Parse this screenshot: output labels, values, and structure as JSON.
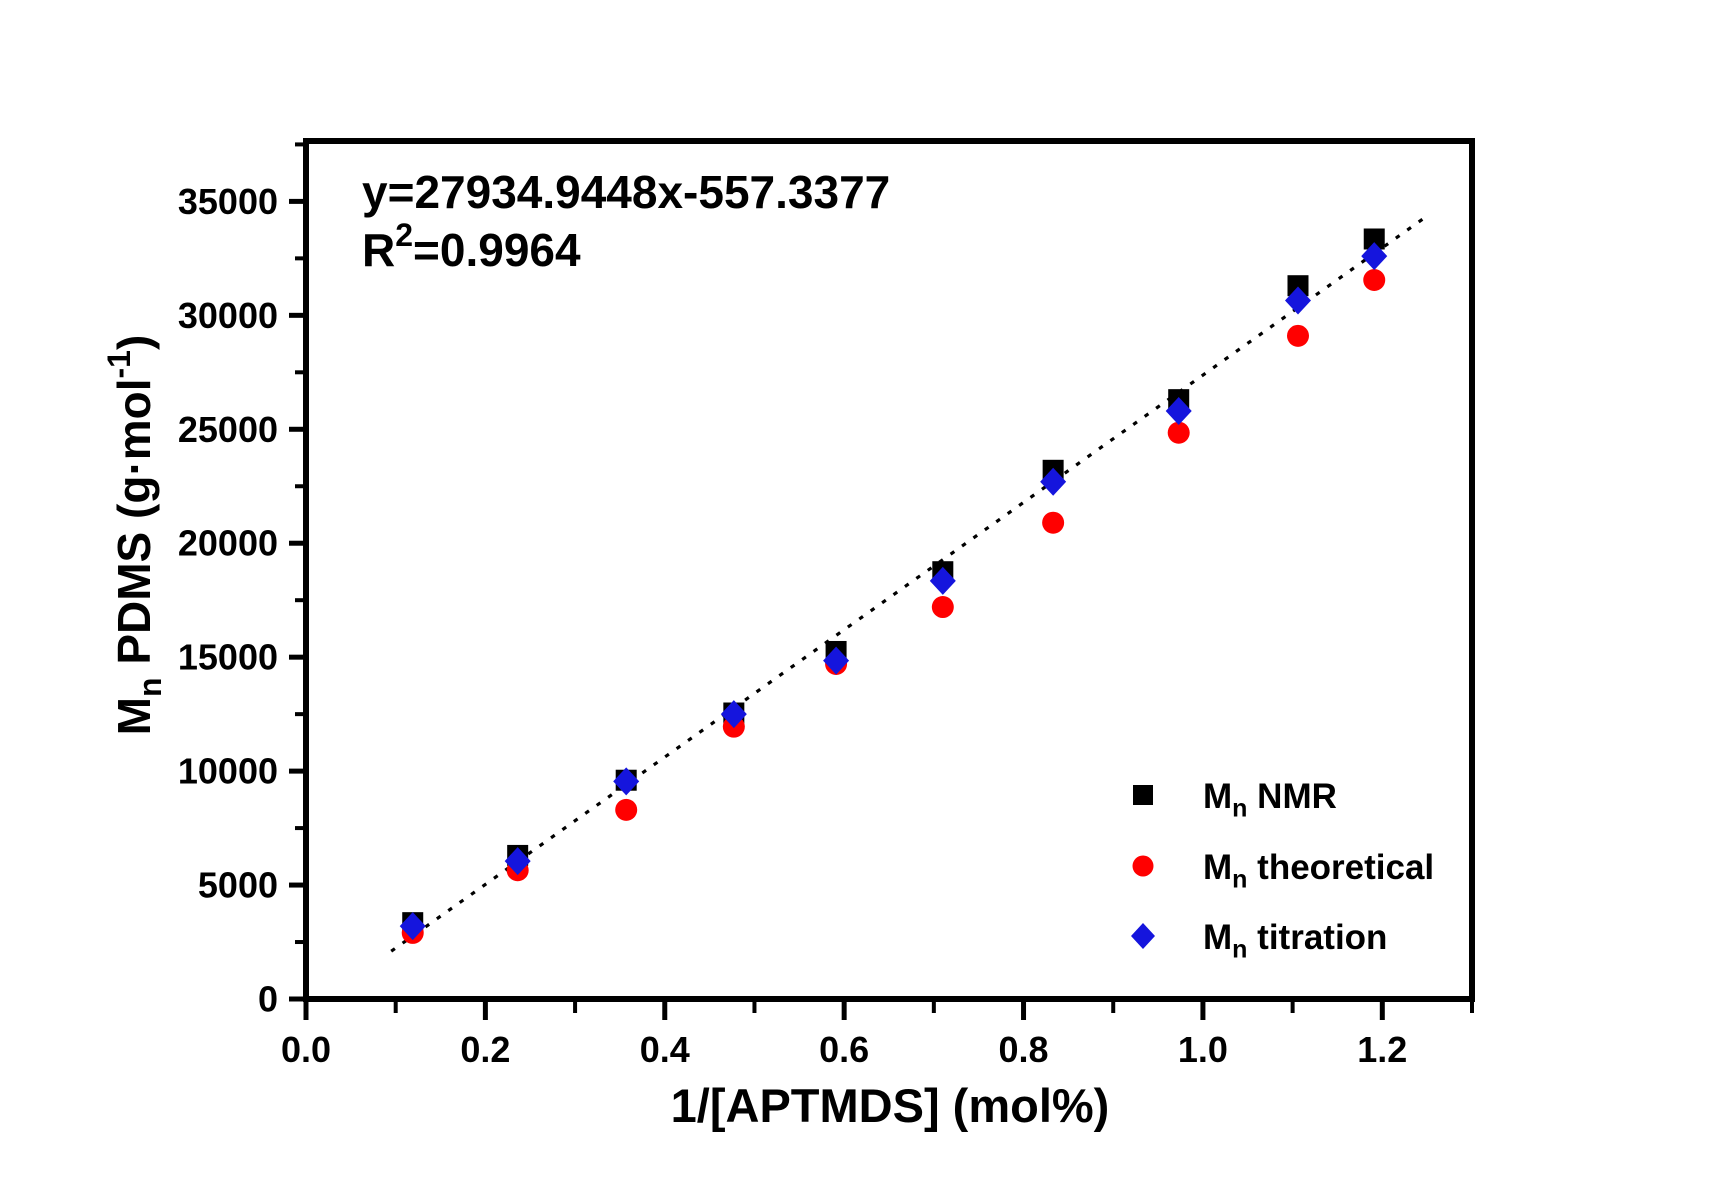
{
  "figure": {
    "background": "#ffffff",
    "frame_color": "#000000"
  },
  "chart_data": {
    "type": "scatter",
    "title": "",
    "xlabel": "1/[APTMDS] (mol%)",
    "ylabel": "Mn PDMS (g·mol-1)",
    "xlabel_parts": [
      {
        "t": "1/[APTMDS] (mol%)"
      }
    ],
    "ylabel_parts": [
      {
        "t": "M"
      },
      {
        "t": "n",
        "sub": true
      },
      {
        "t": " PDMS (g·mol"
      },
      {
        "t": "-1",
        "sup": true
      },
      {
        "t": ")"
      }
    ],
    "xlim": [
      0,
      1.3
    ],
    "ylim": [
      0,
      37650
    ],
    "grid": false,
    "x_major_ticks": [
      0,
      0.2,
      0.4,
      0.6,
      0.8,
      1.0,
      1.2
    ],
    "x_tick_labels": [
      "0.0",
      "0.2",
      "0.4",
      "0.6",
      "0.8",
      "1.0",
      "1.2"
    ],
    "x_minor_ticks": [
      0.1,
      0.3,
      0.5,
      0.7,
      0.9,
      1.1,
      1.3
    ],
    "y_major_ticks": [
      0,
      5000,
      10000,
      15000,
      20000,
      25000,
      30000,
      35000
    ],
    "y_tick_labels": [
      "0",
      "5000",
      "10000",
      "15000",
      "20000",
      "25000",
      "30000",
      "35000"
    ],
    "y_minor_ticks": [
      2500,
      7500,
      12500,
      17500,
      22500,
      27500,
      32500,
      37500
    ],
    "x": [
      0.119,
      0.236,
      0.357,
      0.477,
      0.591,
      0.71,
      0.833,
      0.973,
      1.106,
      1.191
    ],
    "series": [
      {
        "name": "Mn NMR",
        "label_parts": [
          {
            "t": "M"
          },
          {
            "t": "n",
            "sub": true
          },
          {
            "t": " NMR"
          }
        ],
        "marker": "square",
        "color": "#000000",
        "values": [
          3350,
          6300,
          9600,
          12550,
          15250,
          18750,
          23200,
          26300,
          31300,
          33350
        ]
      },
      {
        "name": "Mn theoretical",
        "label_parts": [
          {
            "t": "M"
          },
          {
            "t": "n",
            "sub": true
          },
          {
            "t": " theoretical"
          }
        ],
        "marker": "circle",
        "color": "#ff0000",
        "values": [
          2900,
          5650,
          8300,
          11950,
          14700,
          17200,
          20900,
          24850,
          29100,
          31550
        ]
      },
      {
        "name": "Mn titration",
        "label_parts": [
          {
            "t": "M"
          },
          {
            "t": "n",
            "sub": true
          },
          {
            "t": " titration"
          }
        ],
        "marker": "diamond",
        "color": "#1515dd",
        "values": [
          3200,
          6050,
          9550,
          12500,
          14850,
          18350,
          22700,
          25800,
          30650,
          32600
        ]
      }
    ],
    "fit_line": {
      "equation": "y=27934.9448x-557.3377",
      "slope": 27934.9448,
      "intercept": -557.3377,
      "r_squared": "0.9964",
      "x_start": 0.095,
      "x_end": 1.245,
      "style": "dotted",
      "color": "#000000"
    },
    "annotation_line1_parts": [
      {
        "t": "y=27934.9448x-557.3377"
      }
    ],
    "annotation_line2_parts": [
      {
        "t": "R"
      },
      {
        "t": "2",
        "sup": true
      },
      {
        "t": "=0.9964"
      }
    ],
    "legend_position": "inside-right-lower"
  }
}
